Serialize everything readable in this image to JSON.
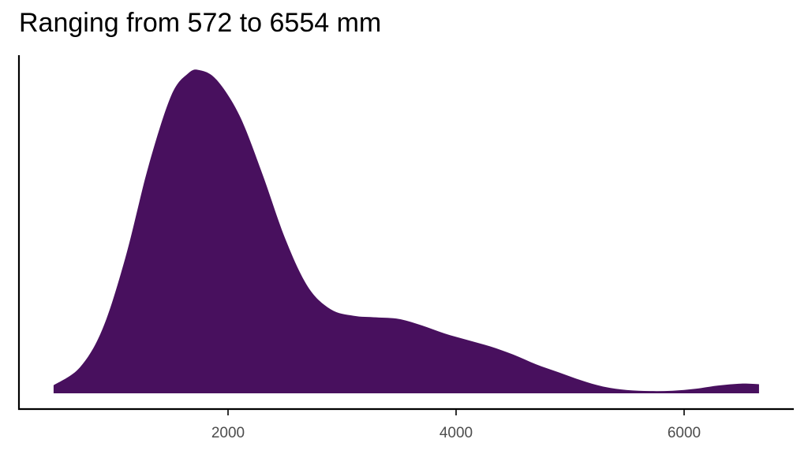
{
  "title": "Ranging from 572 to 6554 mm",
  "colors": {
    "fill": "#48105e",
    "axis": "#000000",
    "tick_text": "#4d4d4d",
    "background": "#ffffff"
  },
  "chart_data": {
    "type": "area",
    "subtype": "density",
    "title": "Ranging from 572 to 6554 mm",
    "xlabel": "",
    "ylabel": "",
    "xlim": [
      0,
      6900
    ],
    "x_ticks": [
      2000,
      4000,
      6000
    ],
    "x_tick_labels": [
      "2000",
      "4000",
      "6000"
    ],
    "y_ticks": [],
    "grid": false,
    "legend": null,
    "data_range_mm": [
      572,
      6554
    ],
    "series": [
      {
        "name": "density",
        "color": "#48105e",
        "x": [
          470,
          700,
          900,
          1100,
          1300,
          1500,
          1650,
          1750,
          1900,
          2100,
          2300,
          2500,
          2700,
          2900,
          3100,
          3300,
          3500,
          3700,
          3900,
          4100,
          4300,
          4500,
          4700,
          4900,
          5100,
          5300,
          5500,
          5700,
          5900,
          6100,
          6300,
          6500,
          6657
        ],
        "y": [
          0.025,
          0.08,
          0.2,
          0.42,
          0.7,
          0.92,
          0.99,
          1.0,
          0.97,
          0.86,
          0.68,
          0.48,
          0.33,
          0.26,
          0.24,
          0.235,
          0.23,
          0.21,
          0.185,
          0.165,
          0.145,
          0.12,
          0.09,
          0.065,
          0.04,
          0.02,
          0.01,
          0.007,
          0.008,
          0.014,
          0.024,
          0.03,
          0.028
        ]
      }
    ]
  }
}
